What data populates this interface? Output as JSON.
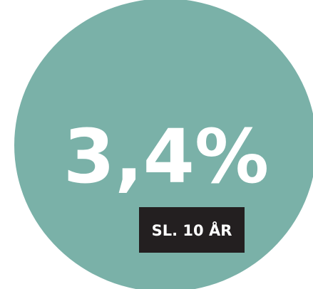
{
  "headline": "3,4%",
  "label": "SL. 10 ÅR"
}
